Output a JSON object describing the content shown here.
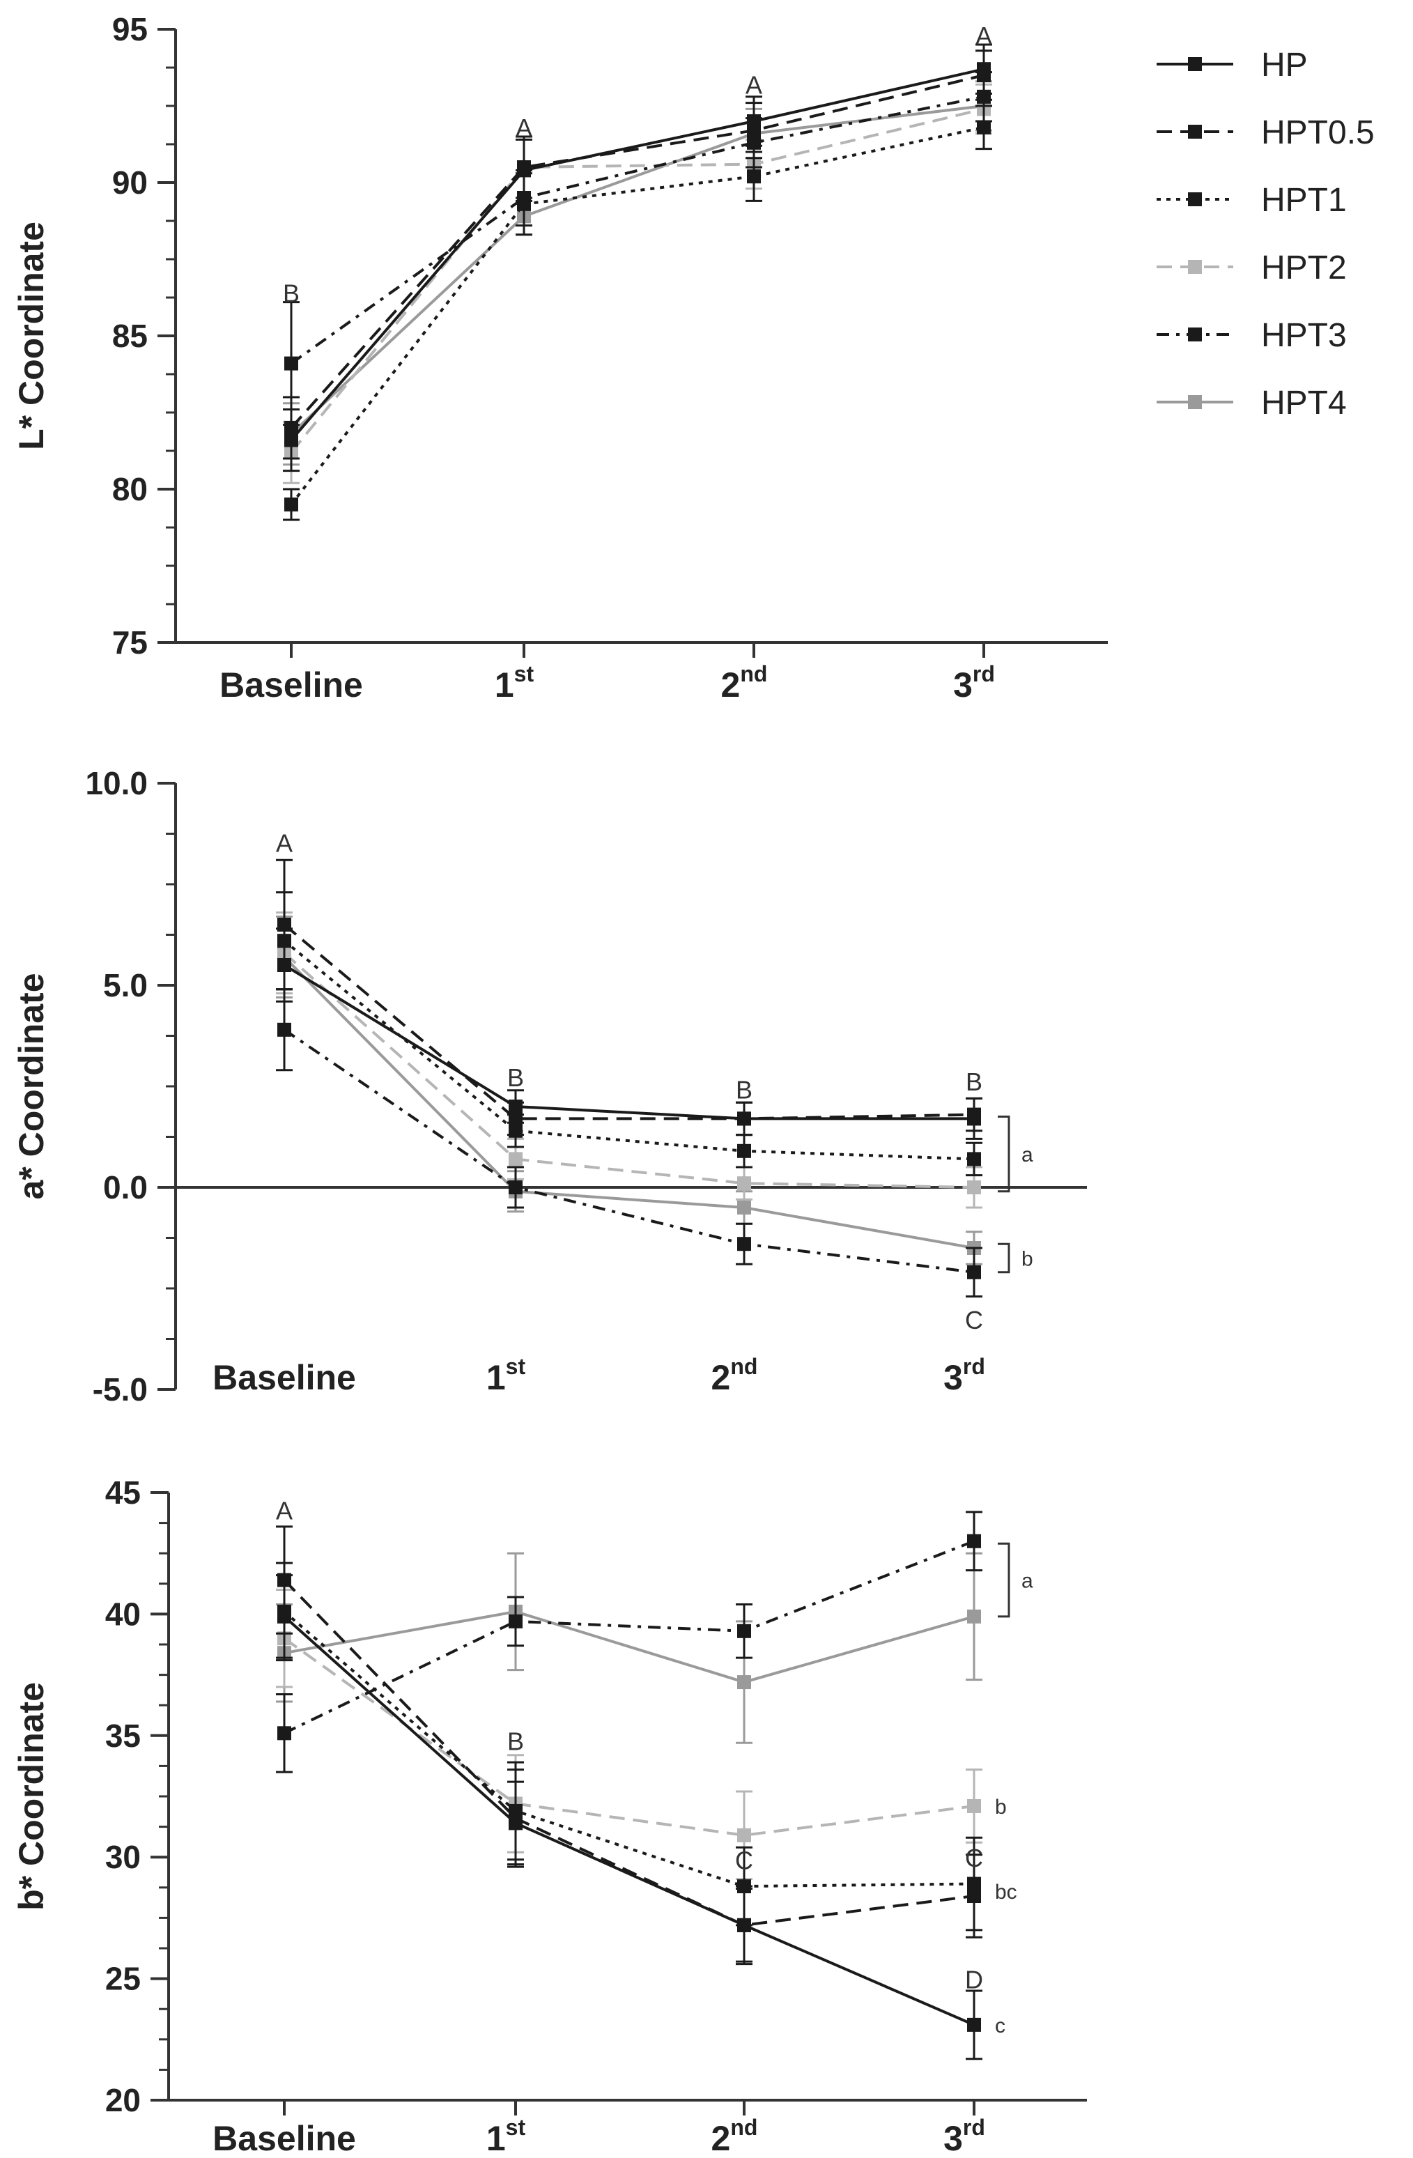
{
  "chart_data": [
    {
      "type": "line",
      "ylabel": "L* Coordinate",
      "ylim": [
        75,
        95
      ],
      "yticks": [
        "75",
        "80",
        "85",
        "90",
        "95"
      ],
      "categories": [
        {
          "main": "Baseline",
          "sup": ""
        },
        {
          "main": "1",
          "sup": "st"
        },
        {
          "main": "2",
          "sup": "nd"
        },
        {
          "main": "3",
          "sup": "rd"
        }
      ],
      "series": [
        {
          "name": "HP",
          "values": [
            81.6,
            90.4,
            92.0,
            93.7
          ],
          "errors": [
            1.0,
            1.0,
            0.8,
            0.8
          ]
        },
        {
          "name": "HPT0.5",
          "values": [
            82.0,
            90.5,
            91.7,
            93.5
          ],
          "errors": [
            1.0,
            1.0,
            0.9,
            0.8
          ]
        },
        {
          "name": "HPT1",
          "values": [
            79.5,
            89.3,
            90.2,
            91.8
          ],
          "errors": [
            0.5,
            1.0,
            0.8,
            0.7
          ]
        },
        {
          "name": "HPT2",
          "values": [
            81.2,
            90.5,
            90.6,
            92.4
          ],
          "errors": [
            1.0,
            1.0,
            0.8,
            0.8
          ]
        },
        {
          "name": "HPT3",
          "values": [
            84.1,
            89.5,
            91.3,
            92.8
          ],
          "errors": [
            2.0,
            0.9,
            0.8,
            0.8
          ]
        },
        {
          "name": "HPT4",
          "values": [
            81.8,
            88.9,
            91.6,
            92.5
          ],
          "errors": [
            1.0,
            0.6,
            0.8,
            0.8
          ]
        }
      ],
      "annotations": [
        {
          "text": "B",
          "category": 0,
          "y": 86.1
        },
        {
          "text": "A",
          "category": 1,
          "y": 91.5
        },
        {
          "text": "A",
          "category": 2,
          "y": 92.9
        },
        {
          "text": "A",
          "category": 3,
          "y": 94.5
        }
      ],
      "brackets": []
    },
    {
      "type": "line",
      "ylabel": "a* Coordinate",
      "ylim": [
        -5.0,
        10.0
      ],
      "yticks": [
        "-5.0",
        "0.0",
        "5.0",
        "10.0"
      ],
      "categories": [
        {
          "main": "Baseline",
          "sup": ""
        },
        {
          "main": "1",
          "sup": "st"
        },
        {
          "main": "2",
          "sup": "nd"
        },
        {
          "main": "3",
          "sup": "rd"
        }
      ],
      "series": [
        {
          "name": "HP",
          "values": [
            5.5,
            2.0,
            1.7,
            1.7
          ],
          "errors": [
            0.9,
            0.4,
            0.4,
            0.5
          ]
        },
        {
          "name": "HPT0.5",
          "values": [
            6.5,
            1.7,
            1.7,
            1.8
          ],
          "errors": [
            1.6,
            0.4,
            0.4,
            0.4
          ]
        },
        {
          "name": "HPT1",
          "values": [
            6.1,
            1.4,
            0.9,
            0.7
          ],
          "errors": [
            1.2,
            0.4,
            0.4,
            0.4
          ]
        },
        {
          "name": "HPT2",
          "values": [
            5.8,
            0.7,
            0.1,
            0.0
          ],
          "errors": [
            1.0,
            0.5,
            0.4,
            0.5
          ]
        },
        {
          "name": "HPT3",
          "values": [
            3.9,
            0.0,
            -1.4,
            -2.1
          ],
          "errors": [
            1.0,
            0.5,
            0.5,
            0.6
          ]
        },
        {
          "name": "HPT4",
          "values": [
            5.7,
            -0.1,
            -0.5,
            -1.5
          ],
          "errors": [
            1.0,
            0.5,
            0.4,
            0.4
          ]
        }
      ],
      "annotations": [
        {
          "text": "A",
          "category": 0,
          "y": 8.3
        },
        {
          "text": "B",
          "category": 1,
          "y": 2.5
        },
        {
          "text": "B",
          "category": 2,
          "y": 2.2
        },
        {
          "text": "B",
          "category": 3,
          "y": 2.4
        },
        {
          "text": "C",
          "category": 3,
          "y": -3.5
        }
      ],
      "brackets": [
        {
          "label": "a",
          "from": 1.75,
          "to": -0.1
        },
        {
          "label": "b",
          "from": -1.4,
          "to": -2.1
        }
      ]
    },
    {
      "type": "line",
      "ylabel": "b* Coordinate",
      "ylim": [
        20,
        45
      ],
      "yticks": [
        "20",
        "25",
        "30",
        "35",
        "40",
        "45"
      ],
      "categories": [
        {
          "main": "Baseline",
          "sup": ""
        },
        {
          "main": "1",
          "sup": "st"
        },
        {
          "main": "2",
          "sup": "nd"
        },
        {
          "main": "3",
          "sup": "rd"
        }
      ],
      "series": [
        {
          "name": "HP",
          "values": [
            39.9,
            31.4,
            27.2,
            23.1
          ],
          "errors": [
            1.7,
            1.7,
            1.5,
            1.4
          ]
        },
        {
          "name": "HPT0.5",
          "values": [
            41.4,
            31.6,
            27.2,
            28.4
          ],
          "errors": [
            2.2,
            2.0,
            1.6,
            1.7
          ]
        },
        {
          "name": "HPT1",
          "values": [
            40.1,
            31.9,
            28.8,
            28.9
          ],
          "errors": [
            2.0,
            2.0,
            1.6,
            1.9
          ]
        },
        {
          "name": "HPT2",
          "values": [
            39.0,
            32.2,
            30.9,
            32.1
          ],
          "errors": [
            2.0,
            2.0,
            1.8,
            1.5
          ]
        },
        {
          "name": "HPT3",
          "values": [
            35.1,
            39.7,
            39.3,
            43.0
          ],
          "errors": [
            1.6,
            1.0,
            1.1,
            1.2
          ]
        },
        {
          "name": "HPT4",
          "values": [
            38.4,
            40.1,
            37.2,
            39.9
          ],
          "errors": [
            2.0,
            2.4,
            2.5,
            2.6
          ]
        }
      ],
      "annotations": [
        {
          "text": "A",
          "category": 0,
          "y": 43.9
        },
        {
          "text": "B",
          "category": 1,
          "y": 34.4
        },
        {
          "text": "C",
          "category": 2,
          "y": 29.5
        },
        {
          "text": "C",
          "category": 3,
          "y": 29.6
        },
        {
          "text": "D",
          "category": 3,
          "y": 24.6
        }
      ],
      "brackets": [
        {
          "label": "a",
          "from": 42.9,
          "to": 39.9
        }
      ],
      "side_labels": [
        {
          "label": "b",
          "y": 32.1
        },
        {
          "label": "bc",
          "y": 28.6
        },
        {
          "label": "c",
          "y": 23.1
        }
      ]
    }
  ],
  "legend": {
    "items": [
      {
        "name": "HP",
        "color": "#1a1a1a",
        "dash": "solid"
      },
      {
        "name": "HPT0.5",
        "color": "#1a1a1a",
        "dash": "dashed"
      },
      {
        "name": "HPT1",
        "color": "#1a1a1a",
        "dash": "dotted"
      },
      {
        "name": "HPT2",
        "color": "#b5b5b5",
        "dash": "dashed"
      },
      {
        "name": "HPT3",
        "color": "#1a1a1a",
        "dash": "dashdot"
      },
      {
        "name": "HPT4",
        "color": "#9a9a9a",
        "dash": "solid"
      }
    ]
  }
}
